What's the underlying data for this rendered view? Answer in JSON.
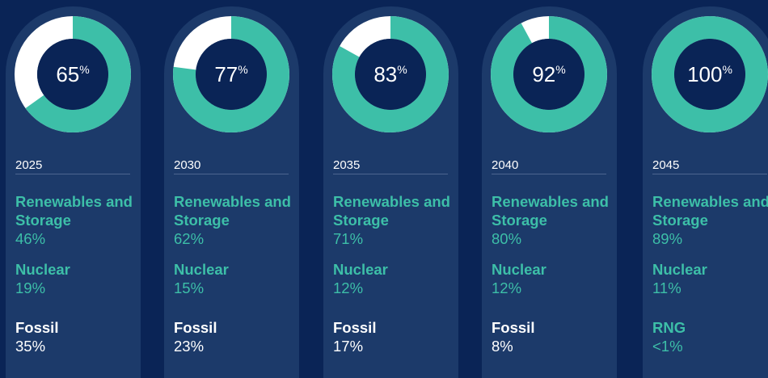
{
  "chart_data": [
    {
      "type": "donut",
      "title": "2025",
      "value": 65,
      "unit": "%",
      "color": "#3dbfa8",
      "rest_color": "#ffffff",
      "items": [
        {
          "label": "Renewables and Storage",
          "value": "46%",
          "color": "#3dbfa8"
        },
        {
          "label": "Nuclear",
          "value": "19%",
          "color": "#3dbfa8"
        },
        {
          "label": "Fossil",
          "value": "35%",
          "color": "#ffffff"
        }
      ]
    },
    {
      "type": "donut",
      "title": "2030",
      "value": 77,
      "unit": "%",
      "color": "#3dbfa8",
      "rest_color": "#ffffff",
      "items": [
        {
          "label": "Renewables and Storage",
          "value": "62%",
          "color": "#3dbfa8"
        },
        {
          "label": "Nuclear",
          "value": "15%",
          "color": "#3dbfa8"
        },
        {
          "label": "Fossil",
          "value": "23%",
          "color": "#ffffff"
        }
      ]
    },
    {
      "type": "donut",
      "title": "2035",
      "value": 83,
      "unit": "%",
      "color": "#3dbfa8",
      "rest_color": "#ffffff",
      "items": [
        {
          "label": "Renewables and Storage",
          "value": "71%",
          "color": "#3dbfa8"
        },
        {
          "label": "Nuclear",
          "value": "12%",
          "color": "#3dbfa8"
        },
        {
          "label": "Fossil",
          "value": "17%",
          "color": "#ffffff"
        }
      ]
    },
    {
      "type": "donut",
      "title": "2040",
      "value": 92,
      "unit": "%",
      "color": "#3dbfa8",
      "rest_color": "#ffffff",
      "items": [
        {
          "label": "Renewables and Storage",
          "value": "80%",
          "color": "#3dbfa8"
        },
        {
          "label": "Nuclear",
          "value": "12%",
          "color": "#3dbfa8"
        },
        {
          "label": "Fossil",
          "value": "8%",
          "color": "#ffffff"
        }
      ]
    },
    {
      "type": "donut",
      "title": "2045",
      "value": 100,
      "unit": "%",
      "color": "#3dbfa8",
      "rest_color": "#ffffff",
      "items": [
        {
          "label": "Renewables and Storage",
          "value": "89%",
          "color": "#3dbfa8"
        },
        {
          "label": "Nuclear",
          "value": "11%",
          "color": "#3dbfa8"
        },
        {
          "label": "RNG",
          "value": "<1%",
          "color": "#3dbfa8"
        }
      ]
    }
  ]
}
